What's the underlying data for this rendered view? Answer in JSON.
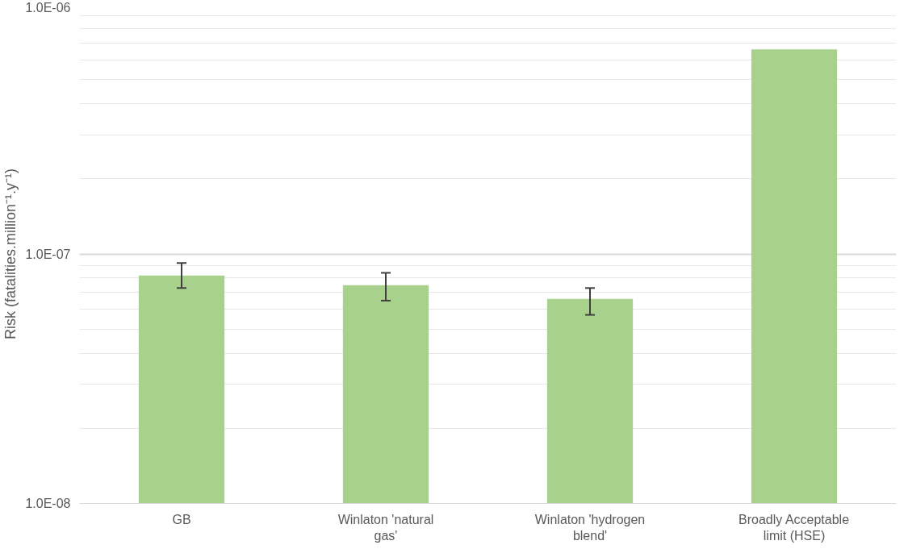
{
  "chart_data": {
    "type": "bar",
    "ylabel": "Risk (fatalities.million⁻¹.y⁻¹)",
    "categories": [
      "GB",
      "Winlaton 'natural gas'",
      "Winlaton 'hydrogen blend'",
      "Broadly Acceptable limit (HSE)"
    ],
    "values": [
      8.2e-08,
      7.5e-08,
      6.6e-08,
      6.6e-07
    ],
    "errors": [
      [
        7.3e-08,
        9.2e-08
      ],
      [
        6.5e-08,
        8.4e-08
      ],
      [
        5.7e-08,
        7.3e-08
      ],
      null
    ],
    "color": "#a9d18e",
    "log": true,
    "ylim": [
      1e-08,
      1e-06
    ],
    "yticks": [
      {
        "value": 1e-08,
        "label": "1.0E-08"
      },
      {
        "value": 1e-07,
        "label": "1.0E-07"
      },
      {
        "value": 1e-06,
        "label": "1.0E-06"
      }
    ],
    "grid": "y"
  }
}
